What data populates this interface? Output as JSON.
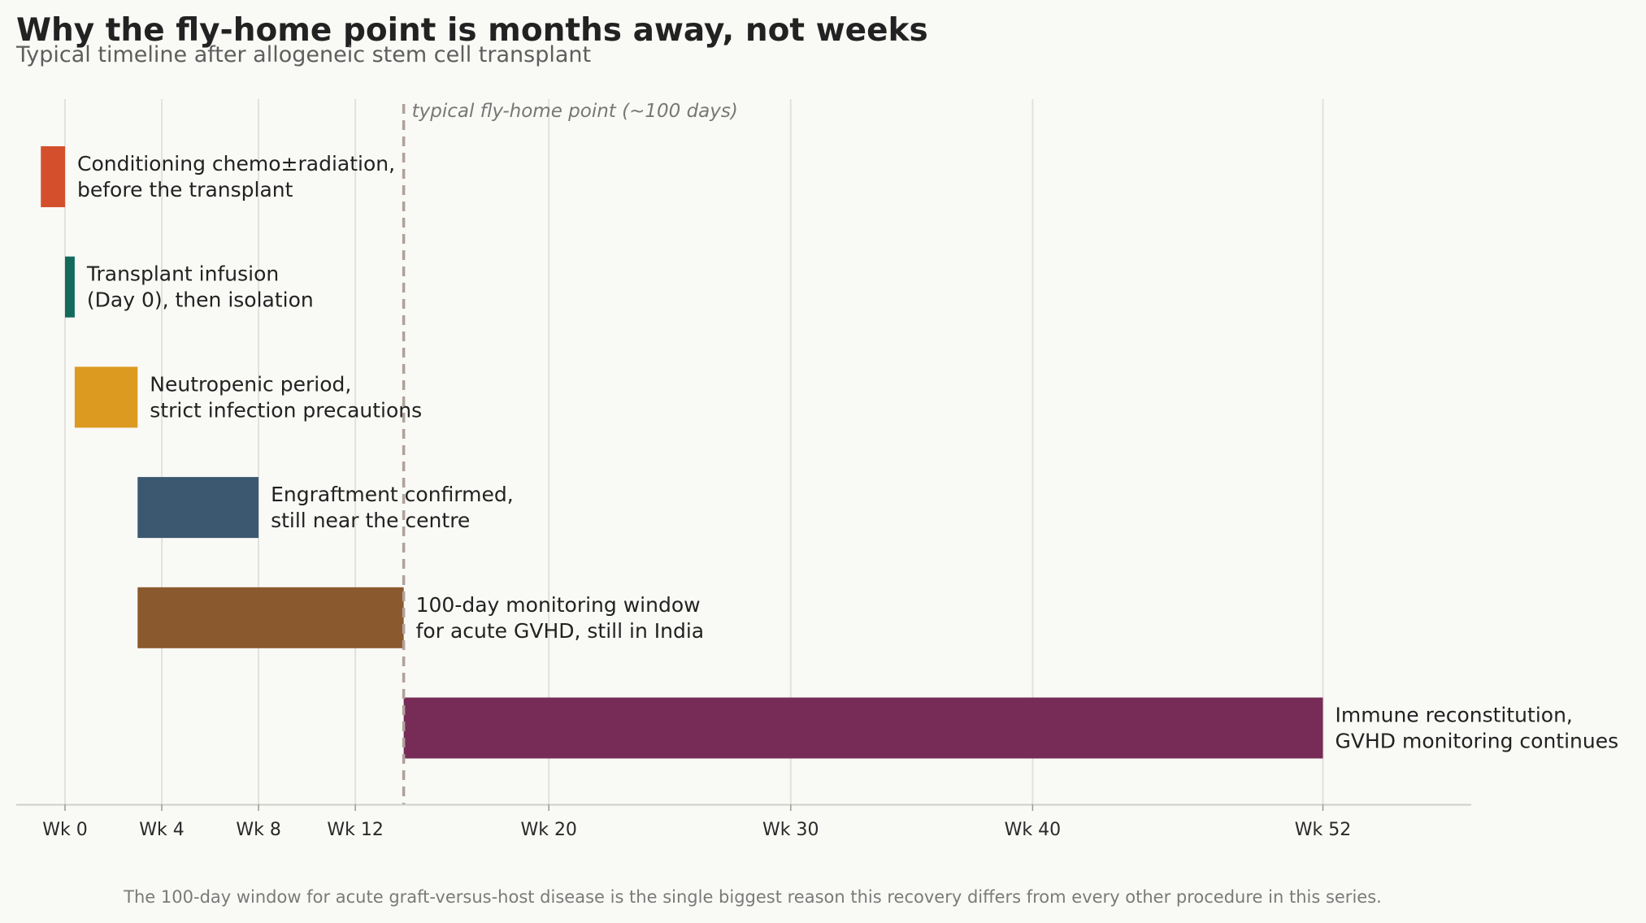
{
  "chart_data": {
    "type": "bar",
    "orientation": "horizontal-timeline",
    "title": "Why the fly-home point is months away, not weeks",
    "subtitle": "Typical timeline after allogeneic stem cell transplant",
    "footnote": "The 100-day window for acute graft-versus-host disease is the single biggest reason this recovery differs from every other procedure in this series.",
    "x_unit": "weeks",
    "xlim": [
      -2,
      58
    ],
    "x_ticks": [
      {
        "value": 0,
        "label": "Wk 0"
      },
      {
        "value": 4,
        "label": "Wk 4"
      },
      {
        "value": 8,
        "label": "Wk 8"
      },
      {
        "value": 12,
        "label": "Wk 12"
      },
      {
        "value": 20,
        "label": "Wk 20"
      },
      {
        "value": 30,
        "label": "Wk 30"
      },
      {
        "value": 40,
        "label": "Wk 40"
      },
      {
        "value": 52,
        "label": "Wk 52"
      }
    ],
    "grid": "vertical",
    "marker": {
      "value": 14,
      "label": "typical fly-home point (~100 days)",
      "color": "#b0a19a",
      "style": "dashed"
    },
    "phases": [
      {
        "start": -1,
        "end": 0,
        "color": "#d4502c",
        "label_lines": [
          "Conditioning chemo±radiation,",
          "before the transplant"
        ]
      },
      {
        "start": 0,
        "end": 0.4,
        "color": "#136b5c",
        "label_lines": [
          "Transplant infusion",
          "(Day 0), then isolation"
        ]
      },
      {
        "start": 0.4,
        "end": 3,
        "color": "#dc9a20",
        "label_lines": [
          "Neutropenic period,",
          "strict infection precautions"
        ]
      },
      {
        "start": 3,
        "end": 8,
        "color": "#3c5870",
        "label_lines": [
          "Engraftment confirmed,",
          "still near the centre"
        ]
      },
      {
        "start": 3,
        "end": 14,
        "color": "#8b592e",
        "label_lines": [
          "100-day monitoring window",
          "for acute GVHD, still in India"
        ]
      },
      {
        "start": 14,
        "end": 52,
        "color": "#772c57",
        "label_lines": [
          "Immune reconstitution,",
          "GVHD monitoring continues"
        ]
      }
    ]
  }
}
